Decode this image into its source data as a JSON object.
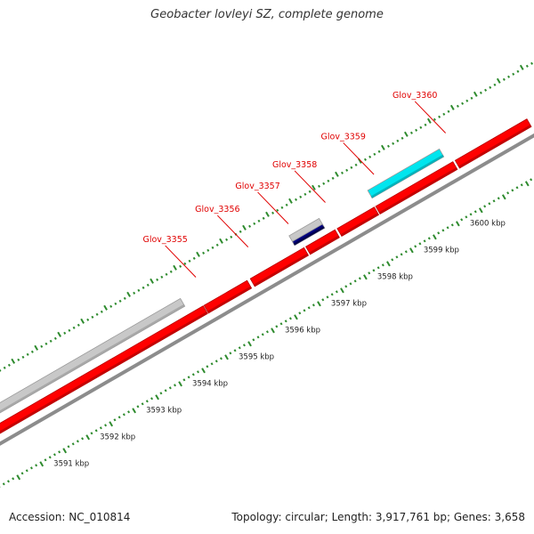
{
  "title": "Geobacter lovleyi SZ, complete genome",
  "accession": "Accession: NC_010814",
  "topology": "Topology: circular; Length: 3,917,761 bp; Genes: 3,658",
  "colors": {
    "cds": "#ff0000",
    "cds_shade": "#b80000",
    "grey_feature": "#c8c8c8",
    "cyan_feature": "#00e5ee",
    "navy_feature": "#000080",
    "backbone": "#8c8c8c",
    "tick": "#2e8b2e",
    "label": "#e00000"
  },
  "gene_labels": [
    {
      "text": "Glov_3355",
      "kb": 3594.75
    },
    {
      "text": "Glov_3356",
      "kb": 3595.88
    },
    {
      "text": "Glov_3357",
      "kb": 3596.75
    },
    {
      "text": "Glov_3358",
      "kb": 3597.55
    },
    {
      "text": "Glov_3359",
      "kb": 3598.6
    },
    {
      "text": "Glov_3360",
      "kb": 3600.15
    }
  ],
  "kbp_labels": [
    "3591 kbp",
    "3592 kbp",
    "3593 kbp",
    "3594 kbp",
    "3595 kbp",
    "3596 kbp",
    "3597 kbp",
    "3598 kbp",
    "3599 kbp",
    "3600 kbp"
  ],
  "kbp_values": [
    3591,
    3592,
    3593,
    3594,
    3595,
    3596,
    3597,
    3598,
    3599,
    3600
  ],
  "features": [
    {
      "name": "cds-lower-1",
      "track": "lower",
      "start": 3590.0,
      "end": 3594.6,
      "color": "cds"
    },
    {
      "name": "cds-lower-2",
      "track": "lower",
      "start": 3594.62,
      "end": 3595.55,
      "color": "cds"
    },
    {
      "name": "cds-lower-3",
      "track": "lower",
      "start": 3595.62,
      "end": 3596.78,
      "color": "cds"
    },
    {
      "name": "cds-lower-4",
      "track": "lower",
      "start": 3596.82,
      "end": 3597.45,
      "color": "cds"
    },
    {
      "name": "cds-lower-5",
      "track": "lower",
      "start": 3597.5,
      "end": 3598.3,
      "color": "cds"
    },
    {
      "name": "cds-lower-6",
      "track": "lower",
      "start": 3598.33,
      "end": 3600.0,
      "color": "cds"
    },
    {
      "name": "cds-lower-7",
      "track": "lower",
      "start": 3600.05,
      "end": 3601.6,
      "color": "cds"
    },
    {
      "name": "grey-upper-1",
      "track": "upper",
      "start": 3590.0,
      "end": 3594.3,
      "color": "grey_feature"
    },
    {
      "name": "grey-upper-2",
      "track": "upper",
      "start": 3596.65,
      "end": 3597.3,
      "color": "grey_feature"
    },
    {
      "name": "navy-upper",
      "track": "upper-inner",
      "start": 3596.65,
      "end": 3597.3,
      "color": "navy_feature"
    },
    {
      "name": "cyan-upper",
      "track": "upper",
      "start": 3598.35,
      "end": 3599.9,
      "color": "cyan_feature"
    }
  ]
}
